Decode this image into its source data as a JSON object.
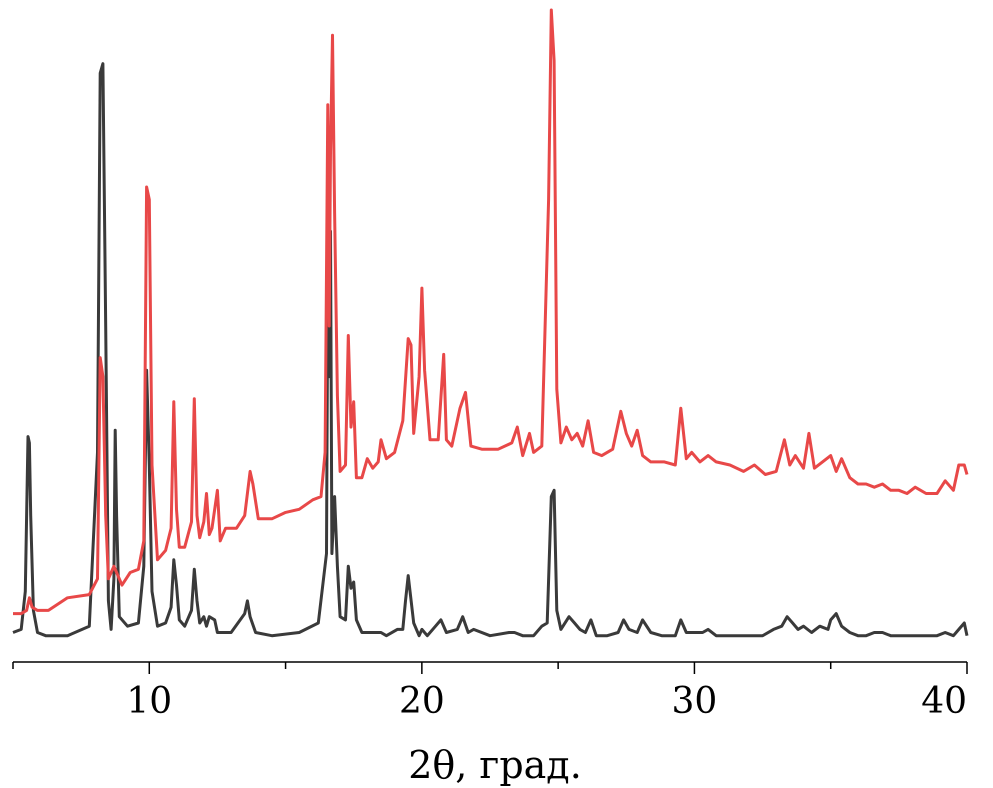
{
  "chart_data": {
    "type": "line",
    "title": "",
    "xlabel": "2θ, град.",
    "ylabel": "",
    "xlim": [
      5,
      40
    ],
    "ylim": [
      0,
      100
    ],
    "x_ticks": [
      10,
      20,
      30,
      40
    ],
    "x_tick_labels": [
      "10",
      "20",
      "30",
      "40"
    ],
    "minor_x_ticks": [
      5,
      15,
      25,
      35
    ],
    "grid": false,
    "legend": "none",
    "series": [
      {
        "color": "#3a3a3a",
        "x": [
          5.0,
          5.3,
          5.45,
          5.55,
          5.6,
          5.65,
          5.75,
          5.9,
          6.2,
          7.0,
          7.8,
          8.1,
          8.2,
          8.3,
          8.4,
          8.5,
          8.6,
          8.7,
          8.75,
          8.8,
          8.9,
          9.2,
          9.6,
          9.8,
          9.9,
          10.0,
          10.1,
          10.3,
          10.6,
          10.8,
          10.9,
          11.0,
          11.1,
          11.3,
          11.55,
          11.65,
          11.75,
          11.85,
          12.0,
          12.1,
          12.2,
          12.4,
          12.5,
          12.6,
          13.0,
          13.5,
          13.6,
          13.7,
          13.9,
          14.5,
          15.5,
          16.2,
          16.5,
          16.55,
          16.6,
          16.65,
          16.7,
          16.8,
          16.9,
          17.0,
          17.2,
          17.3,
          17.4,
          17.5,
          17.6,
          17.8,
          18.1,
          18.2,
          18.4,
          18.5,
          18.7,
          19.1,
          19.3,
          19.4,
          19.5,
          19.7,
          19.9,
          20.0,
          20.2,
          20.5,
          20.7,
          20.9,
          21.3,
          21.5,
          21.7,
          21.9,
          22.5,
          23.2,
          23.4,
          23.7,
          24.1,
          24.4,
          24.6,
          24.75,
          24.85,
          24.95,
          25.1,
          25.4,
          25.6,
          25.8,
          26.0,
          26.2,
          26.4,
          26.8,
          27.2,
          27.4,
          27.6,
          27.9,
          28.1,
          28.4,
          28.8,
          29.3,
          29.5,
          29.7,
          30.0,
          30.3,
          30.5,
          30.8,
          31.2,
          31.8,
          32.1,
          32.5,
          32.9,
          33.2,
          33.4,
          33.6,
          33.8,
          34.0,
          34.3,
          34.6,
          34.9,
          35.0,
          35.2,
          35.4,
          35.7,
          36.0,
          36.3,
          36.6,
          36.9,
          37.2,
          37.5,
          37.8,
          38.1,
          38.5,
          38.9,
          39.2,
          39.5,
          39.7,
          39.9,
          40.0
        ],
        "y": [
          1.5,
          2.0,
          8.0,
          32.5,
          31.5,
          20.0,
          5.0,
          1.5,
          1.0,
          1.0,
          2.5,
          30.0,
          90.0,
          91.5,
          50.0,
          6.5,
          2.0,
          10.0,
          33.5,
          20.0,
          4.0,
          2.5,
          3.0,
          12.0,
          43.0,
          28.0,
          8.0,
          2.5,
          3.0,
          5.5,
          13.0,
          9.0,
          3.5,
          2.5,
          5.0,
          11.5,
          6.5,
          3.0,
          4.0,
          2.5,
          4.0,
          3.5,
          1.5,
          1.5,
          1.5,
          4.5,
          6.5,
          4.0,
          1.5,
          1.0,
          1.5,
          3.0,
          14.0,
          58.0,
          42.0,
          65.0,
          14.0,
          23.0,
          12.0,
          4.0,
          3.5,
          12.0,
          8.5,
          9.5,
          3.5,
          1.5,
          1.5,
          1.5,
          1.5,
          1.5,
          1.0,
          2.0,
          2.0,
          6.5,
          10.5,
          3.0,
          1.0,
          2.0,
          1.0,
          2.5,
          3.5,
          1.5,
          2.0,
          4.0,
          1.5,
          2.0,
          1.0,
          1.5,
          1.5,
          1.0,
          1.0,
          2.5,
          3.0,
          23.0,
          24.0,
          5.0,
          2.0,
          4.0,
          3.0,
          2.0,
          1.5,
          3.5,
          1.0,
          1.0,
          1.5,
          3.5,
          2.0,
          1.5,
          3.5,
          1.5,
          1.0,
          1.0,
          3.5,
          1.5,
          1.5,
          1.5,
          2.0,
          1.0,
          1.0,
          1.0,
          1.0,
          1.0,
          2.0,
          2.5,
          4.0,
          3.0,
          2.0,
          2.5,
          1.5,
          2.5,
          2.0,
          3.5,
          4.5,
          2.5,
          1.5,
          1.0,
          1.0,
          1.5,
          1.5,
          1.0,
          1.0,
          1.0,
          1.0,
          1.0,
          1.0,
          1.5,
          1.0,
          2.0,
          3.0,
          1.0
        ]
      },
      {
        "color": "#e84848",
        "x": [
          5.0,
          5.3,
          5.5,
          5.6,
          5.7,
          5.9,
          6.3,
          7.0,
          7.8,
          8.1,
          8.2,
          8.3,
          8.4,
          8.5,
          8.7,
          9.0,
          9.3,
          9.6,
          9.8,
          9.9,
          10.0,
          10.1,
          10.3,
          10.6,
          10.8,
          10.9,
          11.0,
          11.1,
          11.3,
          11.55,
          11.65,
          11.75,
          11.85,
          12.0,
          12.1,
          12.2,
          12.3,
          12.5,
          12.6,
          12.8,
          13.2,
          13.5,
          13.7,
          13.8,
          14.0,
          14.5,
          15.0,
          15.5,
          16.0,
          16.3,
          16.45,
          16.55,
          16.6,
          16.65,
          16.72,
          16.8,
          16.9,
          17.0,
          17.2,
          17.3,
          17.4,
          17.5,
          17.6,
          17.8,
          18.0,
          18.2,
          18.4,
          18.5,
          18.7,
          19.0,
          19.3,
          19.5,
          19.6,
          19.7,
          19.9,
          20.0,
          20.1,
          20.3,
          20.6,
          20.8,
          20.9,
          21.1,
          21.4,
          21.6,
          21.8,
          22.2,
          22.8,
          23.3,
          23.5,
          23.7,
          23.95,
          24.1,
          24.4,
          24.65,
          24.75,
          24.85,
          24.95,
          25.1,
          25.3,
          25.5,
          25.7,
          25.9,
          26.1,
          26.3,
          26.6,
          27.0,
          27.3,
          27.5,
          27.7,
          27.9,
          28.1,
          28.4,
          28.9,
          29.3,
          29.5,
          29.7,
          29.9,
          30.2,
          30.5,
          30.8,
          31.3,
          31.8,
          32.2,
          32.6,
          33.0,
          33.3,
          33.5,
          33.7,
          34.0,
          34.2,
          34.4,
          34.7,
          35.0,
          35.2,
          35.4,
          35.7,
          36.0,
          36.3,
          36.6,
          36.9,
          37.2,
          37.5,
          37.8,
          38.1,
          38.5,
          38.9,
          39.2,
          39.5,
          39.7,
          39.9,
          40.0
        ],
        "y": [
          4.5,
          4.5,
          5.0,
          7.0,
          5.5,
          5.0,
          5.0,
          7.0,
          7.5,
          10.0,
          45.0,
          42.0,
          20.0,
          10.0,
          12.0,
          9.0,
          11.0,
          11.5,
          16.0,
          72.0,
          70.0,
          28.0,
          13.0,
          14.5,
          18.0,
          38.0,
          21.0,
          15.0,
          15.0,
          19.0,
          38.5,
          20.0,
          16.5,
          19.0,
          23.5,
          17.0,
          18.0,
          24.0,
          16.0,
          18.0,
          18.0,
          20.0,
          27.0,
          25.0,
          19.5,
          19.5,
          20.5,
          21.0,
          22.5,
          23.0,
          30.0,
          85.0,
          50.0,
          77.5,
          96.0,
          68.0,
          39.0,
          27.0,
          28.0,
          48.5,
          34.0,
          38.0,
          26.0,
          26.0,
          29.0,
          27.5,
          28.5,
          32.0,
          29.0,
          30.0,
          35.0,
          48.0,
          47.0,
          33.0,
          42.0,
          56.0,
          43.0,
          32.0,
          32.0,
          45.5,
          32.0,
          31.0,
          37.0,
          39.5,
          31.0,
          30.5,
          30.5,
          31.5,
          34.0,
          29.5,
          33.0,
          30.0,
          31.0,
          70.0,
          100.0,
          92.0,
          40.0,
          31.5,
          34.0,
          32.0,
          33.0,
          31.0,
          35.0,
          30.0,
          29.5,
          30.5,
          36.5,
          33.0,
          31.0,
          33.5,
          29.5,
          28.5,
          28.5,
          28.0,
          37.0,
          29.0,
          30.0,
          28.5,
          29.5,
          28.5,
          28.0,
          27.0,
          28.0,
          26.5,
          27.0,
          32.0,
          28.0,
          29.5,
          27.5,
          33.0,
          27.5,
          28.5,
          29.5,
          27.0,
          29.0,
          26.0,
          25.0,
          25.0,
          24.5,
          25.0,
          24.0,
          24.0,
          23.5,
          24.5,
          23.5,
          23.5,
          25.5,
          24.0,
          28.0,
          28.0,
          26.5
        ]
      }
    ]
  }
}
